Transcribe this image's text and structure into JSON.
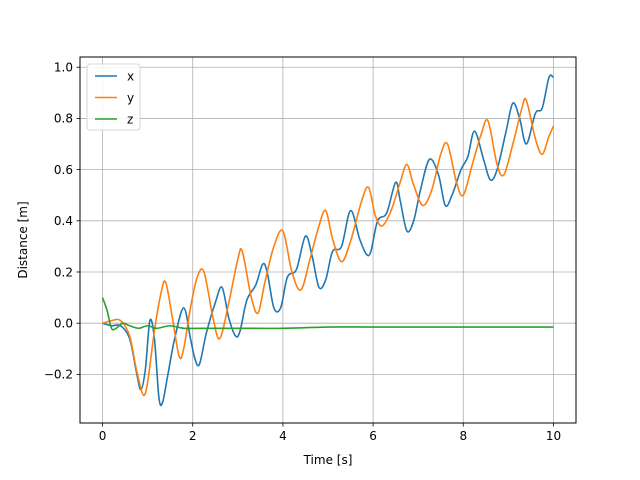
{
  "chart_data": {
    "type": "line",
    "title": "",
    "xlabel": "Time [s]",
    "ylabel": "Distance [m]",
    "xlim": [
      -0.5,
      10.5
    ],
    "ylim": [
      -0.39,
      1.04
    ],
    "xticks": [
      0,
      2,
      4,
      6,
      8,
      10
    ],
    "yticks": [
      -0.2,
      0.0,
      0.2,
      0.4,
      0.6,
      0.8,
      1.0
    ],
    "xtick_labels": [
      "0",
      "2",
      "4",
      "6",
      "8",
      "10"
    ],
    "ytick_labels": [
      "−0.2",
      "0.0",
      "0.2",
      "0.4",
      "0.6",
      "0.8",
      "1.0"
    ],
    "grid": true,
    "legend": "top-left",
    "series": [
      {
        "name": "x",
        "color": "#1f77b4",
        "points": [
          [
            0.0,
            0.0
          ],
          [
            0.2,
            -0.01
          ],
          [
            0.4,
            -0.01
          ],
          [
            0.6,
            -0.06
          ],
          [
            0.75,
            -0.19
          ],
          [
            0.85,
            -0.26
          ],
          [
            0.95,
            -0.18
          ],
          [
            1.05,
            0.01
          ],
          [
            1.15,
            -0.06
          ],
          [
            1.25,
            -0.29
          ],
          [
            1.33,
            -0.31
          ],
          [
            1.45,
            -0.2
          ],
          [
            1.6,
            -0.06
          ],
          [
            1.8,
            0.06
          ],
          [
            1.95,
            -0.06
          ],
          [
            2.05,
            -0.14
          ],
          [
            2.15,
            -0.16
          ],
          [
            2.3,
            -0.04
          ],
          [
            2.5,
            0.08
          ],
          [
            2.65,
            0.14
          ],
          [
            2.8,
            0.02
          ],
          [
            2.95,
            -0.05
          ],
          [
            3.05,
            -0.03
          ],
          [
            3.2,
            0.09
          ],
          [
            3.4,
            0.15
          ],
          [
            3.55,
            0.23
          ],
          [
            3.65,
            0.2
          ],
          [
            3.8,
            0.06
          ],
          [
            3.95,
            0.06
          ],
          [
            4.1,
            0.18
          ],
          [
            4.3,
            0.21
          ],
          [
            4.5,
            0.34
          ],
          [
            4.65,
            0.26
          ],
          [
            4.8,
            0.14
          ],
          [
            4.95,
            0.17
          ],
          [
            5.1,
            0.28
          ],
          [
            5.3,
            0.3
          ],
          [
            5.5,
            0.44
          ],
          [
            5.7,
            0.33
          ],
          [
            5.85,
            0.27
          ],
          [
            5.95,
            0.28
          ],
          [
            6.1,
            0.4
          ],
          [
            6.3,
            0.43
          ],
          [
            6.5,
            0.55
          ],
          [
            6.6,
            0.48
          ],
          [
            6.75,
            0.36
          ],
          [
            6.9,
            0.4
          ],
          [
            7.05,
            0.52
          ],
          [
            7.25,
            0.64
          ],
          [
            7.45,
            0.58
          ],
          [
            7.6,
            0.46
          ],
          [
            7.75,
            0.5
          ],
          [
            7.95,
            0.6
          ],
          [
            8.1,
            0.65
          ],
          [
            8.25,
            0.75
          ],
          [
            8.45,
            0.64
          ],
          [
            8.6,
            0.56
          ],
          [
            8.75,
            0.6
          ],
          [
            8.95,
            0.75
          ],
          [
            9.1,
            0.86
          ],
          [
            9.25,
            0.8
          ],
          [
            9.4,
            0.7
          ],
          [
            9.6,
            0.82
          ],
          [
            9.75,
            0.84
          ],
          [
            9.9,
            0.96
          ],
          [
            10.0,
            0.96
          ]
        ]
      },
      {
        "name": "y",
        "color": "#ff7f0e",
        "points": [
          [
            0.0,
            0.0
          ],
          [
            0.2,
            0.01
          ],
          [
            0.4,
            0.01
          ],
          [
            0.6,
            -0.05
          ],
          [
            0.75,
            -0.18
          ],
          [
            0.9,
            -0.28
          ],
          [
            1.0,
            -0.23
          ],
          [
            1.15,
            -0.03
          ],
          [
            1.3,
            0.12
          ],
          [
            1.4,
            0.16
          ],
          [
            1.55,
            0.02
          ],
          [
            1.7,
            -0.13
          ],
          [
            1.8,
            -0.1
          ],
          [
            1.95,
            0.06
          ],
          [
            2.1,
            0.18
          ],
          [
            2.25,
            0.2
          ],
          [
            2.45,
            0.02
          ],
          [
            2.6,
            -0.06
          ],
          [
            2.8,
            0.08
          ],
          [
            3.0,
            0.25
          ],
          [
            3.1,
            0.28
          ],
          [
            3.3,
            0.1
          ],
          [
            3.45,
            0.04
          ],
          [
            3.6,
            0.16
          ],
          [
            3.8,
            0.3
          ],
          [
            4.0,
            0.36
          ],
          [
            4.2,
            0.2
          ],
          [
            4.4,
            0.13
          ],
          [
            4.6,
            0.25
          ],
          [
            4.8,
            0.38
          ],
          [
            4.95,
            0.44
          ],
          [
            5.1,
            0.33
          ],
          [
            5.3,
            0.24
          ],
          [
            5.5,
            0.32
          ],
          [
            5.75,
            0.48
          ],
          [
            5.9,
            0.53
          ],
          [
            6.05,
            0.42
          ],
          [
            6.2,
            0.38
          ],
          [
            6.4,
            0.44
          ],
          [
            6.6,
            0.55
          ],
          [
            6.75,
            0.62
          ],
          [
            6.9,
            0.54
          ],
          [
            7.1,
            0.46
          ],
          [
            7.3,
            0.52
          ],
          [
            7.5,
            0.66
          ],
          [
            7.65,
            0.7
          ],
          [
            7.85,
            0.55
          ],
          [
            8.0,
            0.5
          ],
          [
            8.2,
            0.62
          ],
          [
            8.4,
            0.74
          ],
          [
            8.55,
            0.79
          ],
          [
            8.75,
            0.62
          ],
          [
            8.9,
            0.58
          ],
          [
            9.1,
            0.7
          ],
          [
            9.3,
            0.84
          ],
          [
            9.4,
            0.87
          ],
          [
            9.6,
            0.72
          ],
          [
            9.75,
            0.66
          ],
          [
            9.9,
            0.73
          ],
          [
            10.0,
            0.77
          ]
        ]
      },
      {
        "name": "z",
        "color": "#2ca02c",
        "points": [
          [
            0.0,
            0.1
          ],
          [
            0.1,
            0.05
          ],
          [
            0.2,
            -0.02
          ],
          [
            0.3,
            -0.02
          ],
          [
            0.45,
            0.0
          ],
          [
            0.6,
            -0.01
          ],
          [
            0.8,
            -0.02
          ],
          [
            1.0,
            -0.01
          ],
          [
            1.2,
            -0.02
          ],
          [
            1.5,
            -0.01
          ],
          [
            1.8,
            -0.02
          ],
          [
            2.2,
            -0.02
          ],
          [
            3.0,
            -0.02
          ],
          [
            4.0,
            -0.02
          ],
          [
            5.0,
            -0.015
          ],
          [
            6.0,
            -0.015
          ],
          [
            7.0,
            -0.015
          ],
          [
            8.0,
            -0.015
          ],
          [
            9.0,
            -0.015
          ],
          [
            10.0,
            -0.015
          ]
        ]
      }
    ]
  }
}
